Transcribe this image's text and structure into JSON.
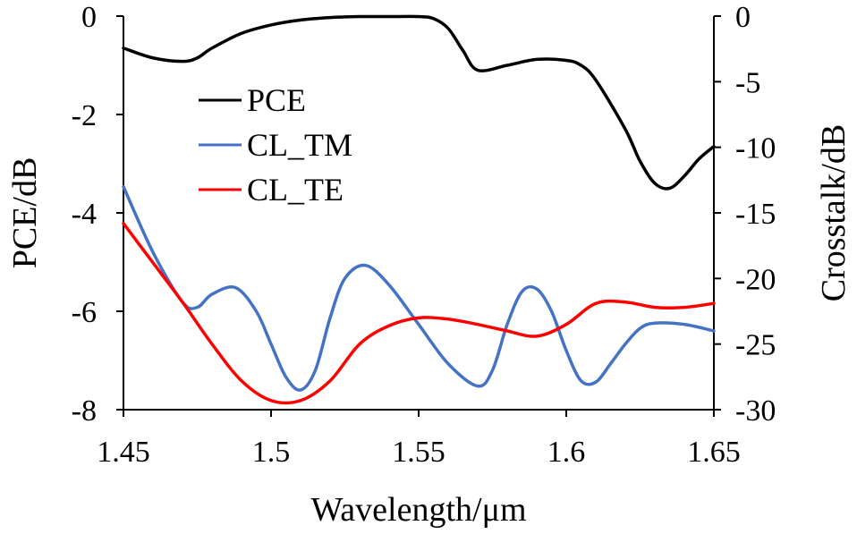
{
  "chart_data": {
    "type": "line",
    "title": "",
    "xlabel": "Wavelength/μm",
    "ylabel_left": "PCE/dB",
    "ylabel_right": "Crosstalk/dB",
    "xlim": [
      1.45,
      1.65
    ],
    "ylim_left": [
      -8,
      0
    ],
    "ylim_right": [
      -30,
      0
    ],
    "x_ticks": [
      1.45,
      1.5,
      1.55,
      1.6,
      1.65
    ],
    "x_tick_labels": [
      "1.45",
      "1.5",
      "1.55",
      "1.6",
      "1.65"
    ],
    "y_left_ticks": [
      0,
      -2,
      -4,
      -6,
      -8
    ],
    "y_left_tick_labels": [
      "0",
      "-2",
      "-4",
      "-6",
      "-8"
    ],
    "y_right_ticks": [
      0,
      -5,
      -10,
      -15,
      -20,
      -25,
      -30
    ],
    "y_right_tick_labels": [
      "0",
      "-5",
      "-10",
      "-15",
      "-20",
      "-25",
      "-30"
    ],
    "grid": false,
    "legend_position": "upper-left",
    "series": [
      {
        "name": "PCE",
        "axis": "left",
        "color": "#000000",
        "x": [
          1.45,
          1.46,
          1.47,
          1.475,
          1.48,
          1.49,
          1.5,
          1.51,
          1.52,
          1.53,
          1.54,
          1.55,
          1.555,
          1.56,
          1.565,
          1.57,
          1.58,
          1.59,
          1.6,
          1.605,
          1.61,
          1.62,
          1.625,
          1.63,
          1.635,
          1.64,
          1.645,
          1.65
        ],
        "y": [
          -0.65,
          -0.85,
          -0.92,
          -0.85,
          -0.65,
          -0.35,
          -0.18,
          -0.08,
          -0.03,
          -0.01,
          -0.01,
          -0.01,
          -0.05,
          -0.25,
          -0.7,
          -1.1,
          -1.0,
          -0.88,
          -0.9,
          -1.0,
          -1.3,
          -2.3,
          -2.95,
          -3.4,
          -3.5,
          -3.25,
          -2.9,
          -2.65
        ]
      },
      {
        "name": "CL_TM",
        "axis": "right",
        "color": "#4472C4",
        "x": [
          1.45,
          1.46,
          1.47,
          1.475,
          1.48,
          1.488,
          1.495,
          1.5,
          1.505,
          1.51,
          1.515,
          1.52,
          1.525,
          1.532,
          1.54,
          1.55,
          1.56,
          1.57,
          1.575,
          1.58,
          1.585,
          1.59,
          1.595,
          1.6,
          1.605,
          1.61,
          1.615,
          1.62,
          1.625,
          1.63,
          1.64,
          1.65
        ],
        "y": [
          -13.0,
          -18.0,
          -21.8,
          -22.2,
          -21.2,
          -20.7,
          -22.5,
          -25.0,
          -27.5,
          -28.5,
          -27.0,
          -23.0,
          -20.0,
          -19.0,
          -20.5,
          -23.5,
          -26.5,
          -28.2,
          -27.0,
          -23.5,
          -21.0,
          -20.8,
          -22.5,
          -25.5,
          -27.8,
          -27.9,
          -26.5,
          -25.0,
          -23.8,
          -23.4,
          -23.5,
          -24.0
        ]
      },
      {
        "name": "CL_TE",
        "axis": "right",
        "color": "#FF0000",
        "x": [
          1.45,
          1.46,
          1.47,
          1.48,
          1.49,
          1.5,
          1.51,
          1.52,
          1.53,
          1.54,
          1.55,
          1.56,
          1.57,
          1.58,
          1.59,
          1.6,
          1.61,
          1.62,
          1.63,
          1.64,
          1.65
        ],
        "y": [
          -15.8,
          -18.8,
          -21.8,
          -25.0,
          -27.8,
          -29.3,
          -29.3,
          -27.8,
          -25.0,
          -23.6,
          -23.0,
          -23.1,
          -23.5,
          -24.0,
          -24.4,
          -23.5,
          -21.9,
          -21.8,
          -22.2,
          -22.2,
          -21.9
        ]
      }
    ]
  }
}
